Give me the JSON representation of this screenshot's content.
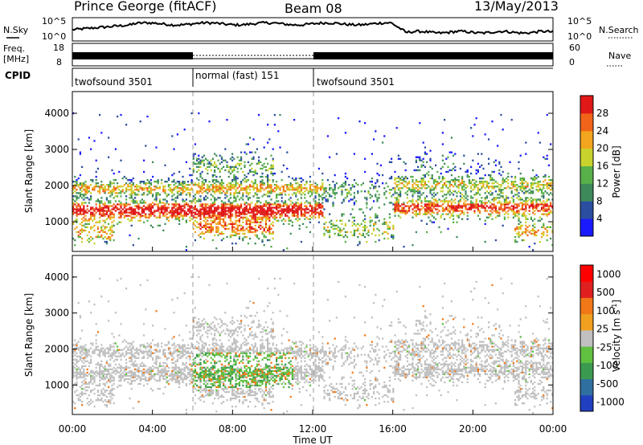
{
  "header": {
    "station": "Prince George (fitACF)",
    "beam": "Beam 08",
    "date": "13/May/2013"
  },
  "top_panels": {
    "nsky_label": "N.Sky",
    "nsky_ticks": [
      "10^5",
      "10^0"
    ],
    "nsearch_label": "N.Search",
    "nsearch_ticks": [
      "10^5",
      "10^0"
    ],
    "freq_label": [
      "Freq.",
      "[MHz]"
    ],
    "freq_ticks": [
      "18",
      "8"
    ],
    "nave_label": "Nave",
    "nave_ticks": [
      "60",
      "0"
    ],
    "cpid_label": "CPID",
    "cpid_segments": [
      {
        "label": "twofsound 3501",
        "start_hour": 0,
        "end_hour": 6
      },
      {
        "label": "normal (fast) 151",
        "start_hour": 6,
        "end_hour": 12
      },
      {
        "label": "twofsound 3501",
        "start_hour": 12,
        "end_hour": 24
      }
    ]
  },
  "chart_data": [
    {
      "type": "heatmap",
      "title": "",
      "xlabel": "Time UT",
      "ylabel": "Slant Range [km]",
      "xlim": [
        0,
        24
      ],
      "ylim": [
        180,
        4600
      ],
      "x_ticks": [
        "00:00",
        "04:00",
        "08:00",
        "12:00",
        "16:00",
        "20:00",
        "00:00"
      ],
      "y_ticks": [
        "1000",
        "2000",
        "3000",
        "4000"
      ],
      "colorbar": {
        "label": "Power [dB]",
        "range": [
          0,
          32
        ],
        "ticks": [
          "4",
          "8",
          "12",
          "16",
          "20",
          "24",
          "28"
        ],
        "colors": [
          "#1a1aff",
          "#2b4ea0",
          "#3f8a5a",
          "#58b04a",
          "#c8d22c",
          "#f2a51e",
          "#f0641a",
          "#e01818"
        ]
      }
    },
    {
      "type": "heatmap",
      "title": "",
      "xlabel": "Time UT",
      "ylabel": "Slant Range [km]",
      "xlim": [
        0,
        24
      ],
      "ylim": [
        180,
        4600
      ],
      "x_ticks": [
        "00:00",
        "04:00",
        "08:00",
        "12:00",
        "16:00",
        "20:00",
        "00:00"
      ],
      "y_ticks": [
        "1000",
        "2000",
        "3000",
        "4000"
      ],
      "colorbar": {
        "label": "Velocity [m s^-1]",
        "ticks": [
          "1000",
          "500",
          "100",
          "25",
          "-25",
          "-100",
          "-500",
          "-1000"
        ],
        "colors": [
          "#2040c0",
          "#3070a0",
          "#3c9a50",
          "#60c040",
          "#c0c0c0",
          "#f0a020",
          "#f07818",
          "#e02020",
          "#ff0000"
        ]
      }
    }
  ]
}
